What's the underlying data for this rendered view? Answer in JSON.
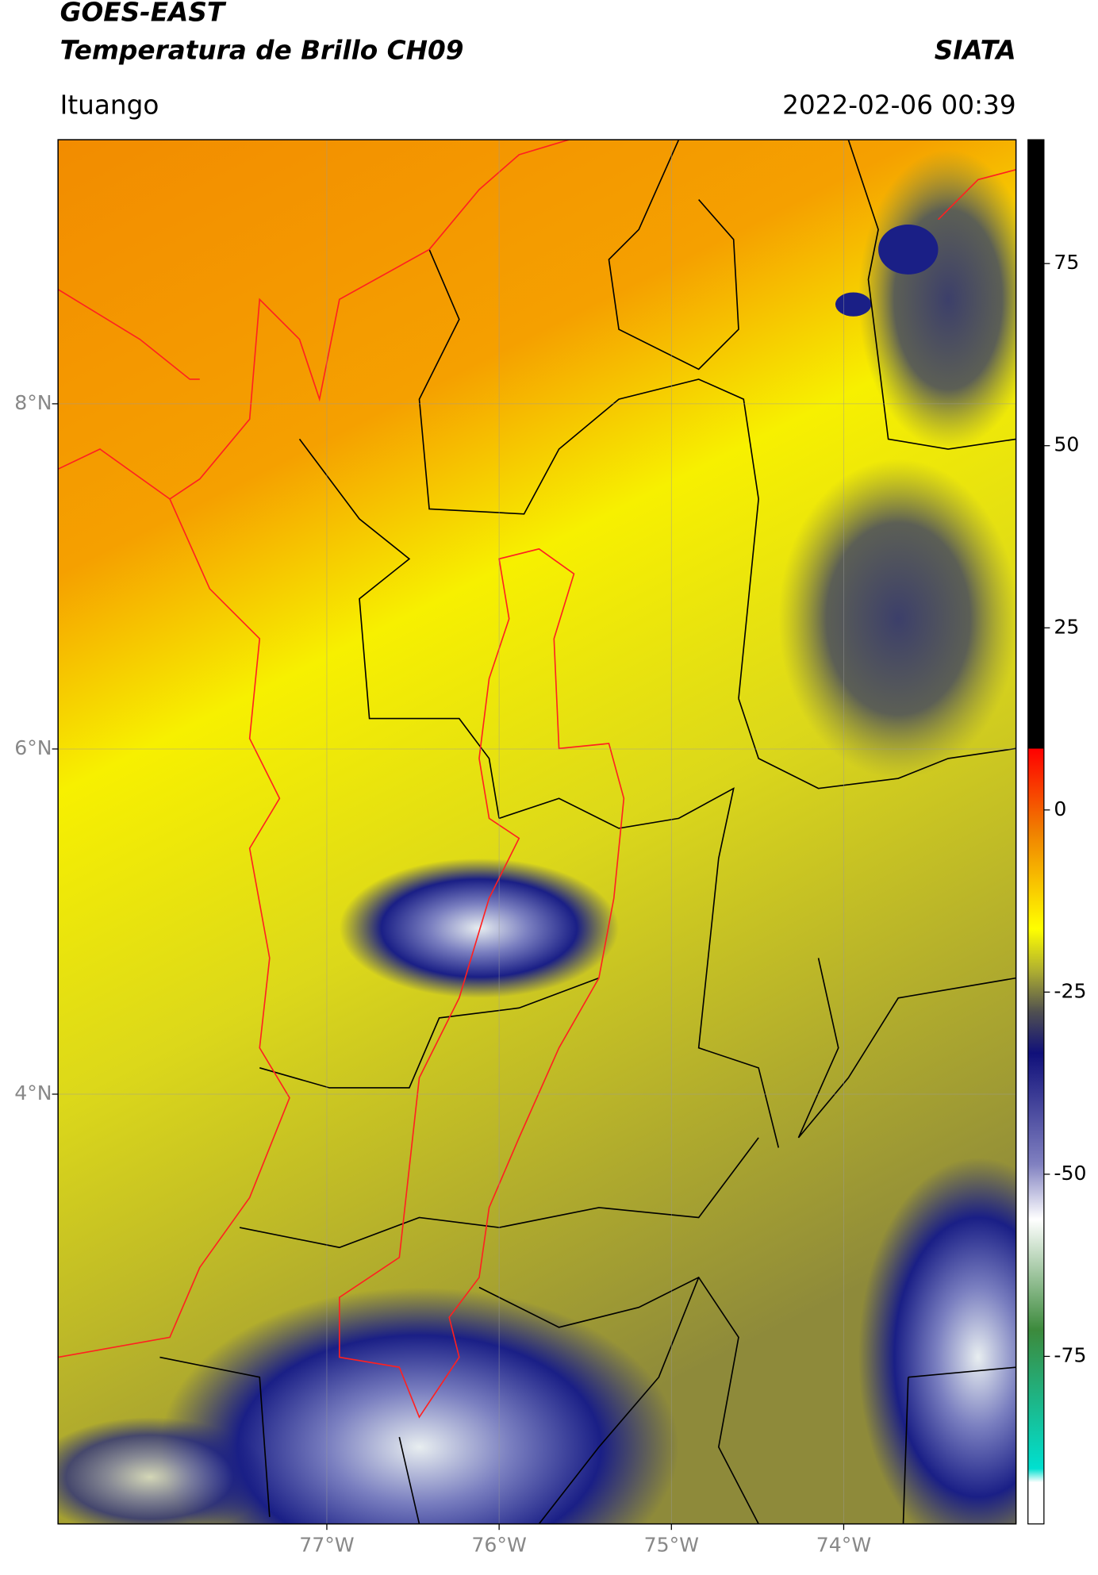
{
  "map": {
    "title": "GOES-EAST",
    "subtitle": "Temperatura de Brillo CH09",
    "source": "SIATA",
    "location": "Ituango",
    "datetime": "2022-02-06 00:39",
    "lonlim": [
      -78.56,
      -73.0
    ],
    "latlim": [
      1.51,
      9.53
    ],
    "lon_ticks": [
      {
        "value": -77,
        "label": "77°W"
      },
      {
        "value": -76,
        "label": "76°W"
      },
      {
        "value": -75,
        "label": "75°W"
      },
      {
        "value": -74,
        "label": "74°W"
      }
    ],
    "lat_ticks": [
      {
        "value": 8,
        "label": "8°N"
      },
      {
        "value": 6,
        "label": "6°N"
      },
      {
        "value": 4,
        "label": "4°N"
      }
    ],
    "colorbar": {
      "lim": [
        -98,
        92
      ],
      "ticks": [
        75,
        50,
        25,
        0,
        -25,
        -50,
        -75
      ]
    }
  }
}
